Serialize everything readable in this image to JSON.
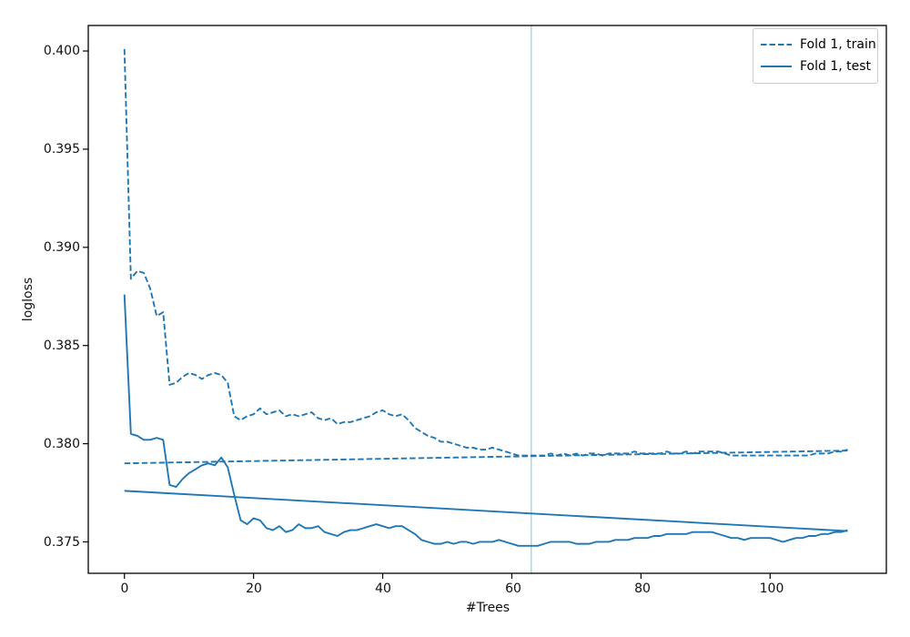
{
  "chart_data": {
    "type": "line",
    "title": "",
    "xlabel": "#Trees",
    "ylabel": "logloss",
    "xlim": [
      -5.6,
      118
    ],
    "ylim": [
      0.3734,
      0.4013
    ],
    "xticks": [
      0,
      20,
      40,
      60,
      80,
      100
    ],
    "xtick_labels": [
      "0",
      "20",
      "40",
      "60",
      "80",
      "100"
    ],
    "yticks": [
      0.375,
      0.38,
      0.385,
      0.39,
      0.395,
      0.4
    ],
    "ytick_labels": [
      "0.375",
      "0.380",
      "0.385",
      "0.390",
      "0.395",
      "0.400"
    ],
    "grid": false,
    "legend_position": "upper right",
    "line_color": "#1f77b4",
    "axis_color": "#000000",
    "vline": {
      "x": 63,
      "color": "#add8e6"
    },
    "legend": [
      {
        "label": "Fold 1, train",
        "style": "dashed"
      },
      {
        "label": "Fold 1, test",
        "style": "solid"
      }
    ],
    "series": [
      {
        "name": "Fold 1, train",
        "style": "dashed",
        "values": [
          0.4001,
          0.3884,
          0.3888,
          0.3887,
          0.3879,
          0.3865,
          0.3867,
          0.383,
          0.3831,
          0.3834,
          0.3836,
          0.3835,
          0.3833,
          0.3835,
          0.3836,
          0.3835,
          0.3831,
          0.3814,
          0.3812,
          0.3814,
          0.3815,
          0.3818,
          0.3815,
          0.3816,
          0.3817,
          0.3814,
          0.3815,
          0.3814,
          0.3815,
          0.3816,
          0.3813,
          0.3812,
          0.3813,
          0.381,
          0.3811,
          0.3811,
          0.3812,
          0.3813,
          0.3814,
          0.3816,
          0.3817,
          0.3815,
          0.3814,
          0.3815,
          0.3812,
          0.3808,
          0.3806,
          0.3804,
          0.3803,
          0.3801,
          0.3801,
          0.38,
          0.3799,
          0.3798,
          0.3798,
          0.3797,
          0.3797,
          0.3798,
          0.3797,
          0.3796,
          0.3795,
          0.3794,
          0.3794,
          0.3794,
          0.3794,
          0.3794,
          0.3795,
          0.3794,
          0.3795,
          0.3794,
          0.3795,
          0.3794,
          0.3795,
          0.3795,
          0.3794,
          0.3795,
          0.3795,
          0.3795,
          0.3795,
          0.3796,
          0.3795,
          0.3795,
          0.3795,
          0.3795,
          0.3796,
          0.3795,
          0.3795,
          0.3796,
          0.3795,
          0.3796,
          0.3796,
          0.3796,
          0.3796,
          0.3795,
          0.3794,
          0.3794,
          0.3794,
          0.3794,
          0.3794,
          0.3794,
          0.3794,
          0.3794,
          0.3794,
          0.3794,
          0.3794,
          0.3794,
          0.3794,
          0.3795,
          0.3795,
          0.3795,
          0.3796,
          0.3796,
          0.3797
        ]
      },
      {
        "name": "Fold 1, test",
        "style": "solid",
        "values": [
          0.3876,
          0.3805,
          0.3804,
          0.3802,
          0.3802,
          0.3803,
          0.3802,
          0.3779,
          0.3778,
          0.3782,
          0.3785,
          0.3787,
          0.3789,
          0.379,
          0.3789,
          0.3793,
          0.3788,
          0.3774,
          0.3761,
          0.3759,
          0.3762,
          0.3761,
          0.3757,
          0.3756,
          0.3758,
          0.3755,
          0.3756,
          0.3759,
          0.3757,
          0.3757,
          0.3758,
          0.3755,
          0.3754,
          0.3753,
          0.3755,
          0.3756,
          0.3756,
          0.3757,
          0.3758,
          0.3759,
          0.3758,
          0.3757,
          0.3758,
          0.3758,
          0.3756,
          0.3754,
          0.3751,
          0.375,
          0.3749,
          0.3749,
          0.375,
          0.3749,
          0.375,
          0.375,
          0.3749,
          0.375,
          0.375,
          0.375,
          0.3751,
          0.375,
          0.3749,
          0.3748,
          0.3748,
          0.3748,
          0.3748,
          0.3749,
          0.375,
          0.375,
          0.375,
          0.375,
          0.3749,
          0.3749,
          0.3749,
          0.375,
          0.375,
          0.375,
          0.3751,
          0.3751,
          0.3751,
          0.3752,
          0.3752,
          0.3752,
          0.3753,
          0.3753,
          0.3754,
          0.3754,
          0.3754,
          0.3754,
          0.3755,
          0.3755,
          0.3755,
          0.3755,
          0.3754,
          0.3753,
          0.3752,
          0.3752,
          0.3751,
          0.3752,
          0.3752,
          0.3752,
          0.3752,
          0.3751,
          0.375,
          0.3751,
          0.3752,
          0.3752,
          0.3753,
          0.3753,
          0.3754,
          0.3754,
          0.3755,
          0.3755,
          0.3756
        ]
      },
      {
        "name": "train endpoints line",
        "style": "dashed",
        "x": [
          0,
          112
        ],
        "values": [
          0.379,
          0.37965
        ]
      },
      {
        "name": "test endpoints line",
        "style": "solid",
        "x": [
          0,
          112
        ],
        "values": [
          0.3776,
          0.37555
        ]
      }
    ]
  }
}
